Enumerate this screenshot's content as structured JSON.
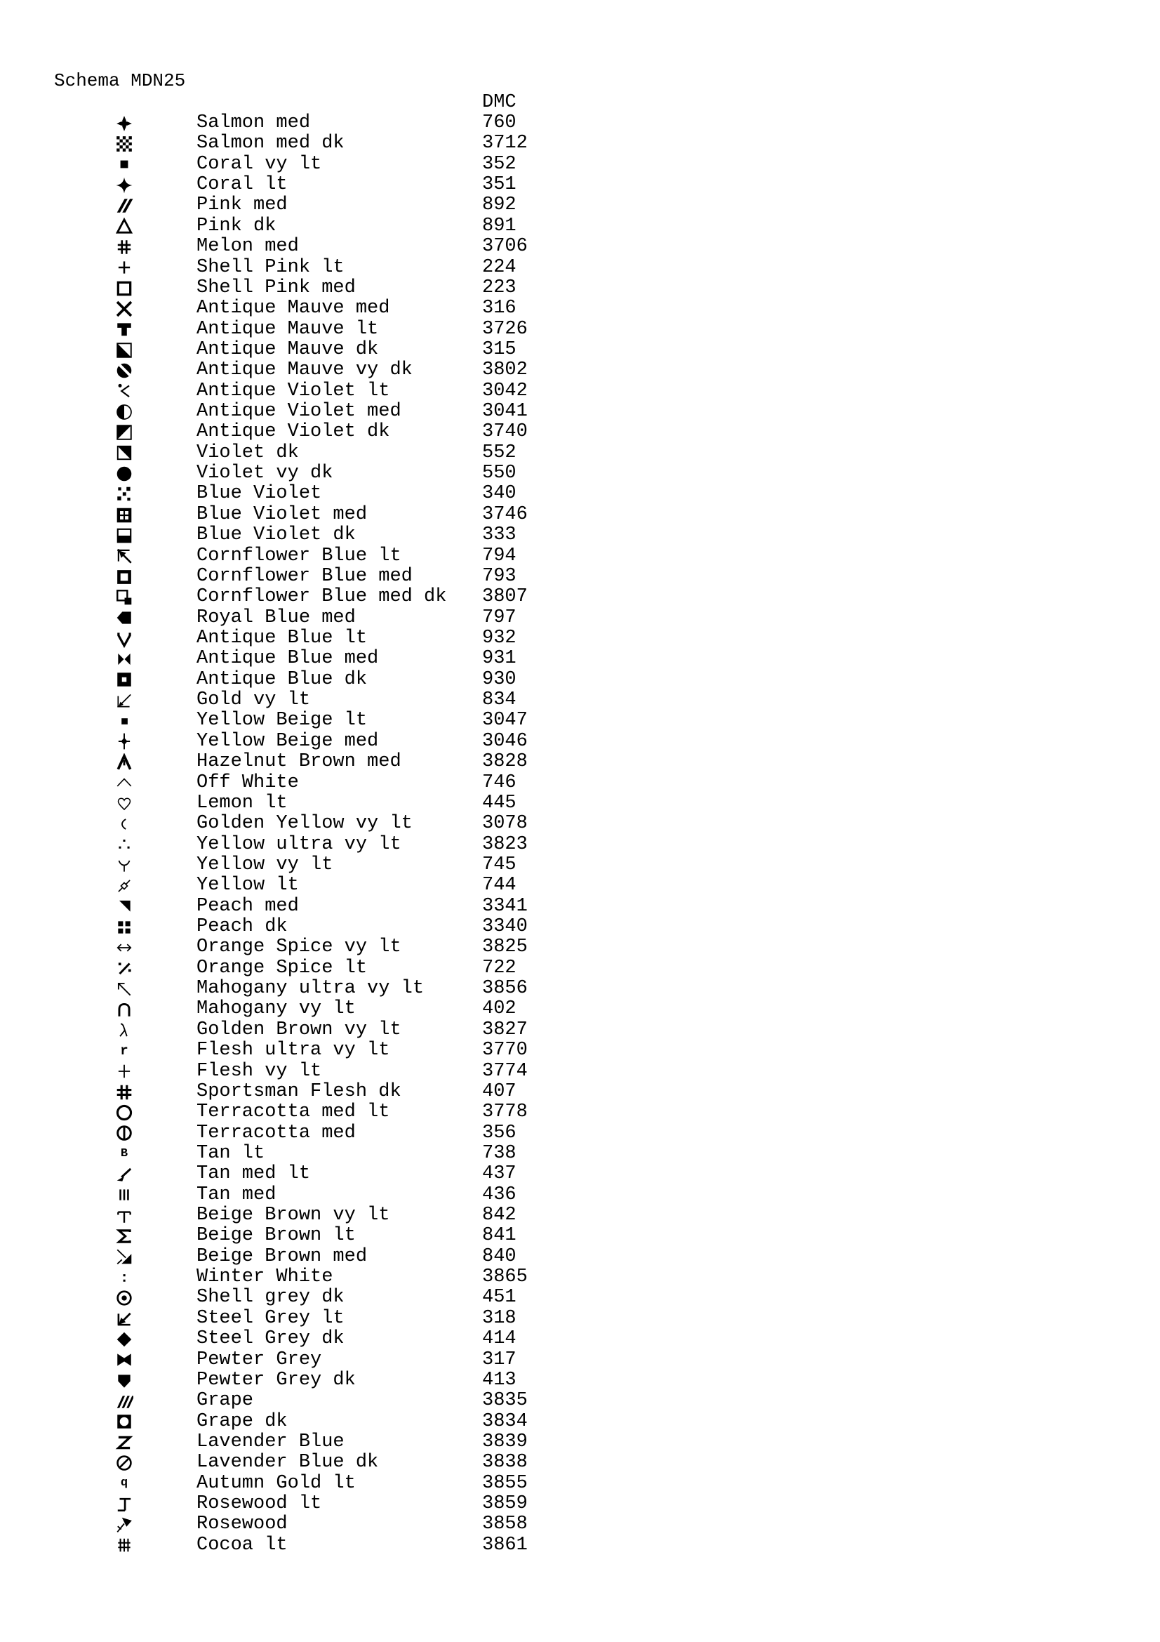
{
  "page": {
    "title": "Schema MDN25"
  },
  "colors": {
    "ink": "#000000",
    "paper": "#ffffff"
  },
  "table": {
    "dmc_header": "DMC",
    "rows": [
      {
        "symbol": "cross-bold",
        "name": "Salmon med",
        "dmc": "760"
      },
      {
        "symbol": "checkerboard",
        "name": "Salmon med dk",
        "dmc": "3712"
      },
      {
        "symbol": "square-filled-small",
        "name": "Coral vy lt",
        "dmc": "352"
      },
      {
        "symbol": "star-four-point",
        "name": "Coral lt",
        "dmc": "351"
      },
      {
        "symbol": "double-slash",
        "name": "Pink med",
        "dmc": "892"
      },
      {
        "symbol": "triangle-outline",
        "name": "Pink dk",
        "dmc": "891"
      },
      {
        "symbol": "hash-bold",
        "name": "Melon med",
        "dmc": "3706"
      },
      {
        "symbol": "plus-medium",
        "name": "Shell Pink lt",
        "dmc": "224"
      },
      {
        "symbol": "square-outline-bold",
        "name": "Shell Pink med",
        "dmc": "223"
      },
      {
        "symbol": "x-bold",
        "name": "Antique Mauve med",
        "dmc": "316"
      },
      {
        "symbol": "t-filled",
        "name": "Antique Mauve lt",
        "dmc": "3726"
      },
      {
        "symbol": "square-diagonal-lower-left",
        "name": "Antique Mauve dk",
        "dmc": "315"
      },
      {
        "symbol": "circle-white-slash",
        "name": "Antique Mauve vy dk",
        "dmc": "3802"
      },
      {
        "symbol": "chevron-dot",
        "name": "Antique Violet lt",
        "dmc": "3042"
      },
      {
        "symbol": "circle-half-left",
        "name": "Antique Violet med",
        "dmc": "3041"
      },
      {
        "symbol": "square-diagonal-upper-left",
        "name": "Antique Violet dk",
        "dmc": "3740"
      },
      {
        "symbol": "square-diagonal-upper-right",
        "name": "Violet dk",
        "dmc": "552"
      },
      {
        "symbol": "circle-filled",
        "name": "Violet vy dk",
        "dmc": "550"
      },
      {
        "symbol": "dot-scatter",
        "name": "Blue Violet",
        "dmc": "340"
      },
      {
        "symbol": "window-grid",
        "name": "Blue Violet med",
        "dmc": "3746"
      },
      {
        "symbol": "square-lower-half",
        "name": "Blue Violet dk",
        "dmc": "333"
      },
      {
        "symbol": "arrow-upleft-corner",
        "name": "Cornflower Blue lt",
        "dmc": "794"
      },
      {
        "symbol": "square-outline-heavy",
        "name": "Cornflower Blue med",
        "dmc": "793"
      },
      {
        "symbol": "square-with-square",
        "name": "Cornflower Blue med dk",
        "dmc": "3807"
      },
      {
        "symbol": "pentagon-left",
        "name": "Royal Blue med",
        "dmc": "797"
      },
      {
        "symbol": "v-bold",
        "name": "Antique Blue lt",
        "dmc": "932"
      },
      {
        "symbol": "bowtie-sharp",
        "name": "Antique Blue med",
        "dmc": "931"
      },
      {
        "symbol": "square-white-hole",
        "name": "Antique Blue dk",
        "dmc": "930"
      },
      {
        "symbol": "corner-diagonal-thin",
        "name": "Gold vy lt",
        "dmc": "834"
      },
      {
        "symbol": "square-filled-tiny",
        "name": "Yellow Beige lt",
        "dmc": "3047"
      },
      {
        "symbol": "plus-diamond",
        "name": "Yellow Beige med",
        "dmc": "3046"
      },
      {
        "symbol": "lambda-bold",
        "name": "Hazelnut Brown med",
        "dmc": "3828"
      },
      {
        "symbol": "caret-thin",
        "name": "Off White",
        "dmc": "746"
      },
      {
        "symbol": "heart-outline",
        "name": "Lemon lt",
        "dmc": "445"
      },
      {
        "symbol": "paren-left",
        "name": "Golden Yellow vy lt",
        "dmc": "3078"
      },
      {
        "symbol": "therefore-dots",
        "name": "Yellow ultra vy lt",
        "dmc": "3823"
      },
      {
        "symbol": "y-curved",
        "name": "Yellow vy lt",
        "dmc": "745"
      },
      {
        "symbol": "diamond-slash",
        "name": "Yellow lt",
        "dmc": "744"
      },
      {
        "symbol": "triangle-upper-right",
        "name": "Peach med",
        "dmc": "3341"
      },
      {
        "symbol": "four-squares",
        "name": "Peach dk",
        "dmc": "3340"
      },
      {
        "symbol": "arrow-leftright",
        "name": "Orange Spice vy lt",
        "dmc": "3825"
      },
      {
        "symbol": "percent-slash",
        "name": "Orange Spice lt",
        "dmc": "722"
      },
      {
        "symbol": "arrow-upleft-thin",
        "name": "Mahogany ultra vy lt",
        "dmc": "3856"
      },
      {
        "symbol": "cap-outline",
        "name": "Mahogany vy lt",
        "dmc": "402"
      },
      {
        "symbol": "lambda-thin",
        "name": "Golden Brown vy lt",
        "dmc": "3827"
      },
      {
        "symbol": "letter-r",
        "name": "Flesh ultra vy lt",
        "dmc": "3770"
      },
      {
        "symbol": "plus-thin",
        "name": "Flesh vy lt",
        "dmc": "3774"
      },
      {
        "symbol": "hash-heavy",
        "name": "Sportsman Flesh dk",
        "dmc": "407"
      },
      {
        "symbol": "circle-outline-bold",
        "name": "Terracotta med lt",
        "dmc": "3778"
      },
      {
        "symbol": "circle-vertical-bar",
        "name": "Terracotta med",
        "dmc": "356"
      },
      {
        "symbol": "letter-b",
        "name": "Tan lt",
        "dmc": "738"
      },
      {
        "symbol": "angle-arrow",
        "name": "Tan med lt",
        "dmc": "437"
      },
      {
        "symbol": "triple-bars",
        "name": "Tan med",
        "dmc": "436"
      },
      {
        "symbol": "t-serif",
        "name": "Beige Brown vy lt",
        "dmc": "842"
      },
      {
        "symbol": "sigma-bold",
        "name": "Beige Brown lt",
        "dmc": "841"
      },
      {
        "symbol": "flag-lower-right",
        "name": "Beige Brown med",
        "dmc": "840"
      },
      {
        "symbol": "colon-dots",
        "name": "Winter White",
        "dmc": "3865"
      },
      {
        "symbol": "circle-center-dot",
        "name": "Shell grey dk",
        "dmc": "451"
      },
      {
        "symbol": "corner-arrow-bold",
        "name": "Steel Grey lt",
        "dmc": "318"
      },
      {
        "symbol": "diamond-filled",
        "name": "Steel Grey dk",
        "dmc": "414"
      },
      {
        "symbol": "bowtie-filled",
        "name": "Pewter Grey",
        "dmc": "317"
      },
      {
        "symbol": "shield-down",
        "name": "Pewter Grey dk",
        "dmc": "413"
      },
      {
        "symbol": "triple-slash",
        "name": "Grape",
        "dmc": "3835"
      },
      {
        "symbol": "square-circle-hole",
        "name": "Grape dk",
        "dmc": "3834"
      },
      {
        "symbol": "z-bold",
        "name": "Lavender Blue",
        "dmc": "3839"
      },
      {
        "symbol": "circle-slash-outline",
        "name": "Lavender Blue dk",
        "dmc": "3838"
      },
      {
        "symbol": "letter-q",
        "name": "Autumn Gold lt",
        "dmc": "3855"
      },
      {
        "symbol": "i-beam-half",
        "name": "Rosewood lt",
        "dmc": "3859"
      },
      {
        "symbol": "flag-arrow",
        "name": "Rosewood",
        "dmc": "3858"
      },
      {
        "symbol": "fence-hash",
        "name": "Cocoa lt",
        "dmc": "3861"
      }
    ]
  }
}
